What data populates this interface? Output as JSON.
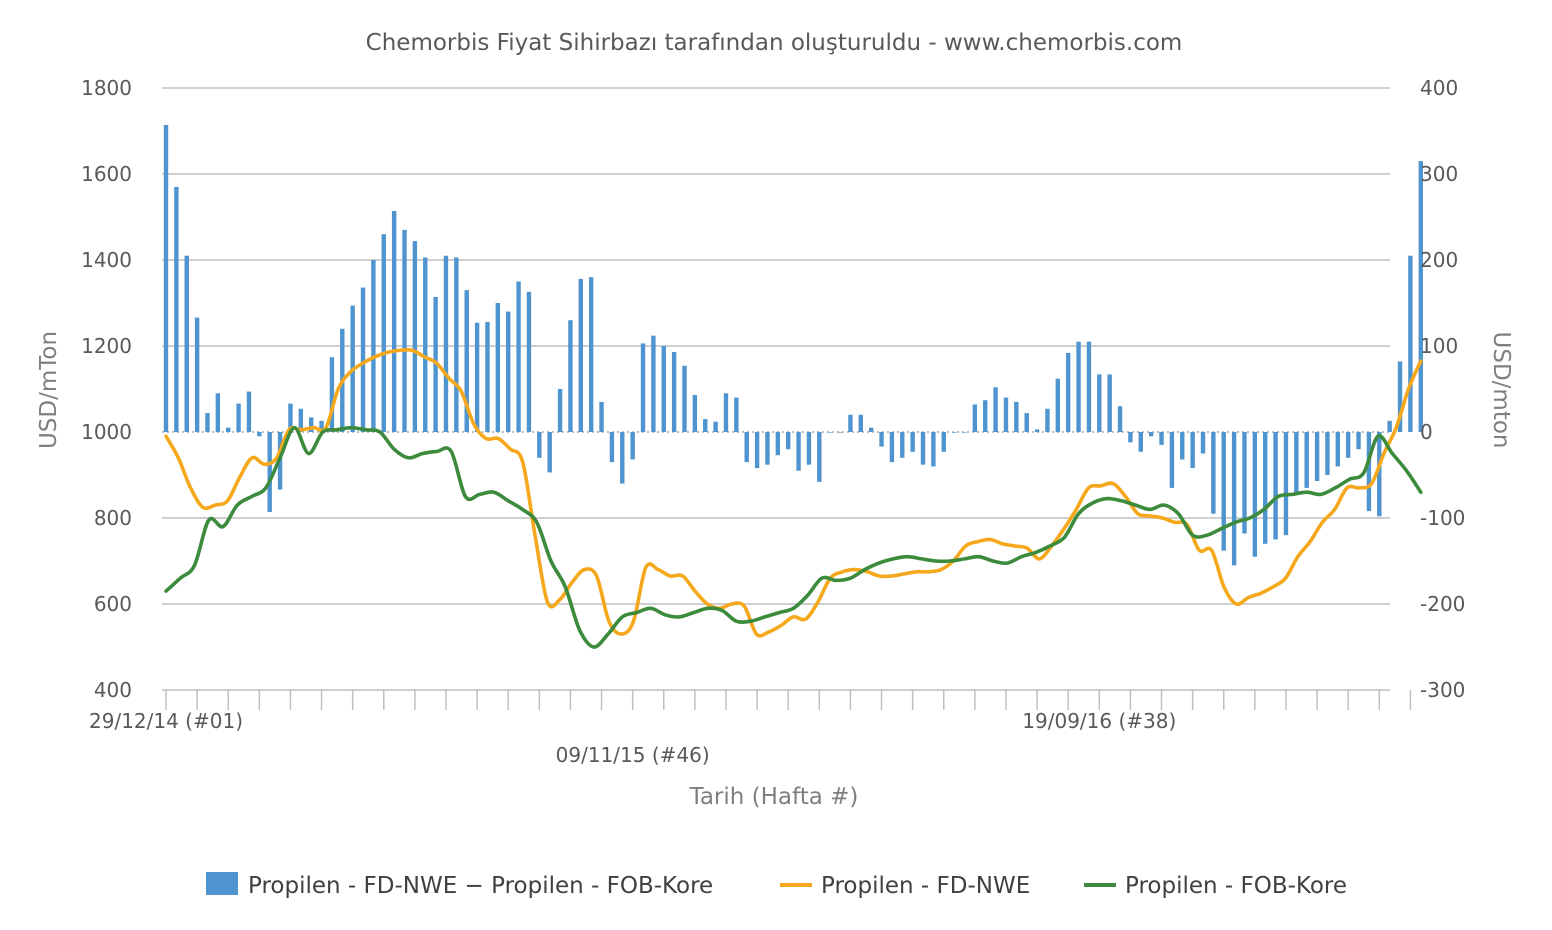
{
  "chart_data": {
    "type": "bar+line",
    "title": "Chemorbis Fiyat Sihirbazı tarafından oluşturuldu - www.chemorbis.com",
    "xlabel": "Tarih (Hafta #)",
    "ylabel_left": "USD/mTon",
    "ylabel_right": "USD/mton",
    "ylim_left": [
      400,
      1800
    ],
    "ylim_right": [
      -300,
      400
    ],
    "yticks_left": [
      "1800",
      "1600",
      "1400",
      "1200",
      "1000",
      "800",
      "600",
      "400"
    ],
    "yticks_right": [
      "400",
      "300",
      "200",
      "100",
      "0",
      "-100",
      "-200",
      "-300"
    ],
    "x_tick_labels": [
      {
        "week": 0,
        "label": "29/12/14 (#01)"
      },
      {
        "week": 45,
        "label": "09/11/15 (#46)"
      },
      {
        "week": 90,
        "label": "19/09/16 (#38)"
      }
    ],
    "grid": true,
    "legend_position": "bottom",
    "colors": {
      "spread": "#4e95d0",
      "fd_nwe": "#f5a81c",
      "fob_kore": "#3c8a3c"
    },
    "series": [
      {
        "name": "Propilen - FD-NWE − Propilen - FOB-Kore",
        "axis": "right",
        "kind": "bar",
        "values": [
          357,
          285,
          205,
          133,
          22,
          45,
          5,
          33,
          47,
          -5,
          -93,
          -67,
          33,
          27,
          17,
          13,
          87,
          120,
          147,
          168,
          200,
          230,
          257,
          235,
          222,
          203,
          157,
          205,
          203,
          165,
          127,
          128,
          150,
          140,
          175,
          163,
          -30,
          -47,
          50,
          130,
          178,
          180,
          35,
          -35,
          -60,
          -32,
          103,
          112,
          100,
          93,
          77,
          43,
          15,
          12,
          45,
          40,
          -35,
          -42,
          -38,
          -27,
          -20,
          -45,
          -38,
          -58,
          0,
          0,
          20,
          20,
          5,
          -17,
          -35,
          -30,
          -23,
          -38,
          -40,
          -23,
          0,
          0,
          32,
          37,
          52,
          40,
          35,
          22,
          3,
          27,
          62,
          92,
          105,
          105,
          67,
          67,
          30,
          -12,
          -23,
          -5,
          -15,
          -65,
          -32,
          -42,
          -25,
          -95,
          -138,
          -155,
          -118,
          -145,
          -130,
          -125,
          -120,
          -72,
          -65,
          -57,
          -50,
          -40,
          -30,
          -20,
          -92,
          -98,
          13,
          82,
          205,
          315
        ]
      },
      {
        "name": "Propilen - FD-NWE",
        "axis": "left",
        "kind": "line",
        "values": [
          990,
          940,
          870,
          825,
          830,
          840,
          895,
          940,
          925,
          940,
          1005,
          1005,
          1010,
          1010,
          1100,
          1140,
          1160,
          1175,
          1185,
          1190,
          1190,
          1175,
          1160,
          1125,
          1095,
          1020,
          985,
          985,
          960,
          930,
          760,
          605,
          610,
          650,
          680,
          665,
          560,
          530,
          560,
          685,
          680,
          665,
          665,
          630,
          600,
          590,
          600,
          595,
          530,
          535,
          550,
          570,
          565,
          605,
          660,
          675,
          680,
          675,
          665,
          665,
          670,
          675,
          675,
          680,
          700,
          735,
          745,
          750,
          740,
          735,
          730,
          705,
          735,
          775,
          820,
          870,
          875,
          880,
          850,
          810,
          805,
          800,
          790,
          785,
          725,
          725,
          640,
          600,
          615,
          625,
          640,
          660,
          710,
          745,
          790,
          820,
          870,
          870,
          880,
          950,
          1010,
          1100,
          1165
        ]
      },
      {
        "name": "Propilen - FOB-Kore",
        "axis": "left",
        "kind": "line",
        "values": [
          630,
          660,
          690,
          795,
          780,
          830,
          850,
          870,
          940,
          1010,
          950,
          1000,
          1005,
          1010,
          1005,
          1000,
          960,
          940,
          950,
          955,
          955,
          850,
          855,
          860,
          840,
          820,
          790,
          700,
          640,
          540,
          500,
          530,
          570,
          580,
          590,
          575,
          570,
          580,
          590,
          585,
          560,
          560,
          570,
          580,
          590,
          620,
          660,
          655,
          660,
          680,
          695,
          705,
          710,
          705,
          700,
          700,
          705,
          710,
          700,
          695,
          710,
          720,
          735,
          755,
          810,
          835,
          845,
          840,
          830,
          820,
          830,
          810,
          760,
          760,
          775,
          790,
          800,
          820,
          850,
          855,
          860,
          855,
          870,
          890,
          905,
          990,
          950,
          910,
          860
        ]
      }
    ]
  },
  "legend": [
    {
      "key": "spread",
      "label": "Propilen - FD-NWE − Propilen - FOB-Kore"
    },
    {
      "key": "fd_nwe",
      "label": "Propilen - FD-NWE"
    },
    {
      "key": "fob_kore",
      "label": "Propilen - FOB-Kore"
    }
  ]
}
